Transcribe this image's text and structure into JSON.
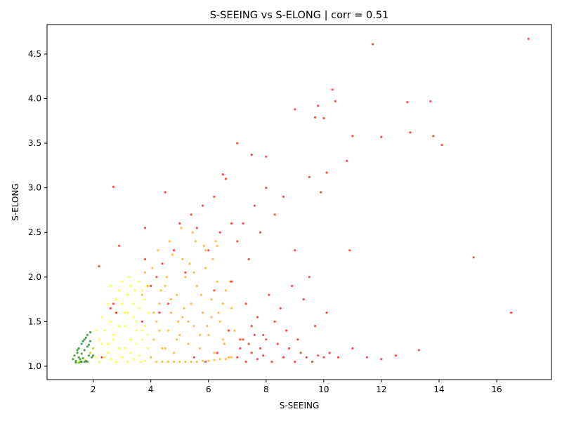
{
  "chart_data": {
    "type": "scatter",
    "title": "S-SEEING vs S-ELONG | corr = 0.51",
    "xlabel": "S-SEEING",
    "ylabel": "S-ELONG",
    "xlim": [
      0.4,
      17.9
    ],
    "ylim": [
      0.85,
      4.83
    ],
    "grid": false,
    "legend": "none",
    "x_ticks": [
      2,
      4,
      6,
      8,
      10,
      12,
      14,
      16
    ],
    "y_ticks": [
      1.0,
      1.5,
      2.0,
      2.5,
      3.0,
      3.5,
      4.0,
      4.5
    ],
    "x_tick_labels": [
      "2",
      "4",
      "6",
      "8",
      "10",
      "12",
      "14",
      "16"
    ],
    "y_tick_labels": [
      "1.0",
      "1.5",
      "2.0",
      "2.5",
      "3.0",
      "3.5",
      "4.0",
      "4.5"
    ],
    "point_alpha": 0.7,
    "colors": {
      "green": "#008000",
      "yellow": "#ffff00",
      "orange": "#ffa500",
      "red": "#ff0000"
    },
    "series": [
      {
        "color": "#008000",
        "x": [
          1.3,
          1.35,
          1.4,
          1.45,
          1.5,
          1.5,
          1.55,
          1.6,
          1.6,
          1.65,
          1.7,
          1.7,
          1.75,
          1.8,
          1.8,
          1.85,
          1.9,
          1.9,
          1.95,
          2.0,
          1.4,
          1.5,
          1.6,
          1.7,
          1.8,
          1.9,
          2.0,
          1.45,
          1.55,
          1.65,
          1.75,
          1.85
        ],
        "y": [
          1.08,
          1.12,
          1.06,
          1.15,
          1.1,
          1.2,
          1.05,
          1.14,
          1.25,
          1.09,
          1.18,
          1.3,
          1.06,
          1.22,
          1.35,
          1.12,
          1.28,
          1.38,
          1.1,
          1.2,
          1.04,
          1.04,
          1.05,
          1.05,
          1.05,
          1.15,
          1.12,
          1.18,
          1.08,
          1.28,
          1.32,
          1.24
        ]
      },
      {
        "color": "#ffff00",
        "x": [
          1.5,
          1.7,
          1.9,
          2.0,
          2.1,
          2.2,
          2.3,
          2.4,
          2.5,
          2.6,
          2.7,
          2.8,
          2.9,
          3.0,
          3.1,
          3.2,
          3.3,
          3.4,
          3.5,
          3.6,
          3.7,
          3.8,
          3.9,
          2.2,
          2.4,
          2.6,
          2.8,
          3.0,
          3.2,
          3.4,
          3.6,
          3.8,
          2.3,
          2.5,
          2.7,
          2.9,
          3.1,
          3.3,
          3.5,
          3.7,
          3.9,
          2.1,
          2.5,
          2.9,
          3.3,
          3.7,
          2.6,
          3.0,
          3.4,
          3.8,
          2.8,
          3.2,
          3.6,
          3.9,
          3.1,
          3.5,
          3.25,
          3.45,
          3.65,
          3.85
        ],
        "y": [
          1.05,
          1.08,
          1.15,
          1.2,
          1.1,
          1.3,
          1.25,
          1.4,
          1.15,
          1.5,
          1.35,
          1.6,
          1.2,
          1.7,
          1.45,
          1.8,
          1.3,
          1.55,
          1.25,
          1.65,
          1.4,
          1.75,
          1.2,
          1.05,
          1.1,
          1.08,
          1.05,
          1.1,
          1.05,
          1.08,
          1.12,
          1.06,
          1.55,
          1.7,
          1.3,
          1.85,
          1.6,
          1.9,
          1.5,
          1.85,
          1.6,
          1.4,
          1.25,
          1.45,
          1.15,
          1.3,
          1.9,
          1.95,
          1.7,
          1.45,
          1.75,
          1.6,
          1.95,
          1.35,
          1.2,
          1.4,
          2.0,
          1.85,
          1.05,
          1.9
        ]
      },
      {
        "color": "#ffa500",
        "x": [
          4.0,
          4.1,
          4.2,
          4.3,
          4.4,
          4.5,
          4.6,
          4.7,
          4.8,
          4.9,
          5.0,
          5.1,
          5.2,
          5.3,
          5.4,
          5.5,
          5.6,
          5.7,
          5.8,
          5.9,
          6.0,
          6.1,
          6.2,
          6.3,
          6.4,
          6.5,
          6.6,
          6.7,
          6.8,
          6.9,
          4.2,
          4.4,
          4.6,
          4.8,
          5.0,
          5.2,
          5.4,
          5.6,
          5.8,
          6.0,
          6.2,
          6.4,
          6.6,
          6.8,
          4.3,
          4.5,
          4.7,
          4.9,
          5.1,
          5.3,
          5.5,
          5.7,
          5.9,
          6.1,
          6.3,
          6.5,
          4.1,
          4.35,
          4.55,
          4.75,
          4.95,
          5.15,
          5.35,
          5.55,
          5.75,
          5.95,
          6.15,
          6.35,
          6.55,
          6.75,
          4.25,
          4.65,
          5.05,
          5.45,
          5.85,
          6.25,
          3.9,
          3.8,
          3.7,
          4.05
        ],
        "y": [
          1.1,
          1.3,
          1.5,
          1.7,
          1.2,
          1.9,
          1.4,
          1.6,
          1.15,
          1.8,
          1.35,
          1.55,
          2.0,
          1.25,
          1.7,
          1.45,
          1.9,
          1.2,
          1.6,
          2.1,
          1.35,
          1.75,
          1.15,
          1.95,
          1.5,
          1.3,
          1.85,
          1.1,
          1.65,
          1.4,
          1.05,
          1.05,
          1.05,
          1.05,
          1.05,
          1.05,
          1.05,
          1.05,
          1.06,
          1.06,
          1.07,
          1.08,
          1.08,
          1.1,
          1.4,
          1.2,
          1.75,
          1.3,
          2.2,
          1.5,
          2.05,
          1.35,
          2.3,
          1.55,
          2.35,
          1.7,
          1.6,
          1.85,
          2.0,
          2.25,
          1.5,
          1.65,
          2.15,
          2.4,
          1.8,
          1.45,
          2.2,
          1.6,
          1.25,
          1.95,
          2.3,
          2.4,
          2.55,
          2.5,
          2.35,
          2.4,
          1.9,
          2.05,
          1.8,
          2.1
        ]
      },
      {
        "color": "#ff0000",
        "x": [
          2.6,
          2.7,
          2.8,
          2.3,
          2.2,
          3.7,
          3.8,
          4.0,
          4.2,
          4.4,
          4.6,
          4.8,
          5.0,
          5.2,
          5.4,
          5.6,
          5.8,
          6.0,
          6.2,
          6.4,
          6.6,
          6.8,
          7.0,
          7.1,
          7.2,
          7.3,
          7.4,
          7.5,
          7.6,
          7.7,
          7.8,
          7.9,
          8.0,
          8.2,
          8.4,
          8.6,
          8.8,
          9.0,
          9.2,
          9.4,
          9.6,
          9.8,
          10.0,
          10.2,
          7.0,
          7.2,
          7.4,
          7.6,
          7.8,
          8.0,
          8.3,
          8.6,
          9.0,
          9.5,
          10.5,
          11.0,
          11.5,
          12.0,
          12.5,
          13.3,
          6.2,
          6.8,
          7.3,
          7.7,
          8.1,
          8.5,
          8.9,
          9.3,
          9.7,
          10.1,
          5.5,
          5.9,
          6.3,
          6.7,
          7.1,
          7.5,
          7.9,
          8.3,
          8.7,
          9.1,
          4.3,
          4.5,
          3.8,
          2.7,
          2.9,
          6.5,
          7.0,
          7.5,
          8.0,
          9.0,
          9.8,
          10.3,
          10.0,
          10.8,
          11.0,
          11.7,
          12.0,
          12.9,
          13.0,
          13.7,
          13.8,
          14.1,
          15.2,
          16.5,
          17.1,
          9.9,
          10.1,
          10.9,
          9.7,
          9.5,
          10.4
        ],
        "y": [
          1.65,
          1.7,
          1.6,
          1.1,
          2.12,
          1.5,
          2.2,
          1.9,
          2.0,
          2.15,
          1.7,
          2.3,
          2.6,
          2.05,
          2.7,
          2.55,
          2.8,
          2.3,
          2.9,
          2.5,
          3.1,
          2.6,
          1.1,
          1.2,
          1.3,
          1.05,
          1.25,
          1.15,
          1.35,
          1.08,
          1.2,
          1.12,
          1.3,
          1.05,
          1.25,
          1.1,
          1.2,
          1.05,
          1.15,
          1.1,
          1.05,
          1.12,
          1.1,
          1.15,
          2.4,
          2.6,
          2.2,
          2.8,
          2.5,
          3.0,
          2.7,
          2.9,
          2.3,
          2.0,
          1.1,
          1.2,
          1.1,
          1.08,
          1.12,
          1.18,
          1.85,
          1.95,
          1.7,
          1.55,
          1.8,
          1.65,
          1.9,
          1.75,
          1.45,
          1.6,
          1.1,
          1.05,
          1.15,
          1.4,
          1.3,
          1.45,
          1.35,
          1.5,
          1.4,
          1.3,
          1.6,
          2.95,
          2.55,
          3.01,
          2.35,
          3.15,
          3.5,
          3.37,
          3.35,
          3.88,
          3.92,
          4.1,
          3.78,
          3.3,
          3.58,
          4.61,
          3.57,
          3.96,
          3.62,
          3.97,
          3.58,
          3.48,
          2.22,
          1.6,
          4.67,
          2.95,
          3.17,
          2.3,
          3.79,
          3.12,
          3.97
        ]
      }
    ]
  }
}
